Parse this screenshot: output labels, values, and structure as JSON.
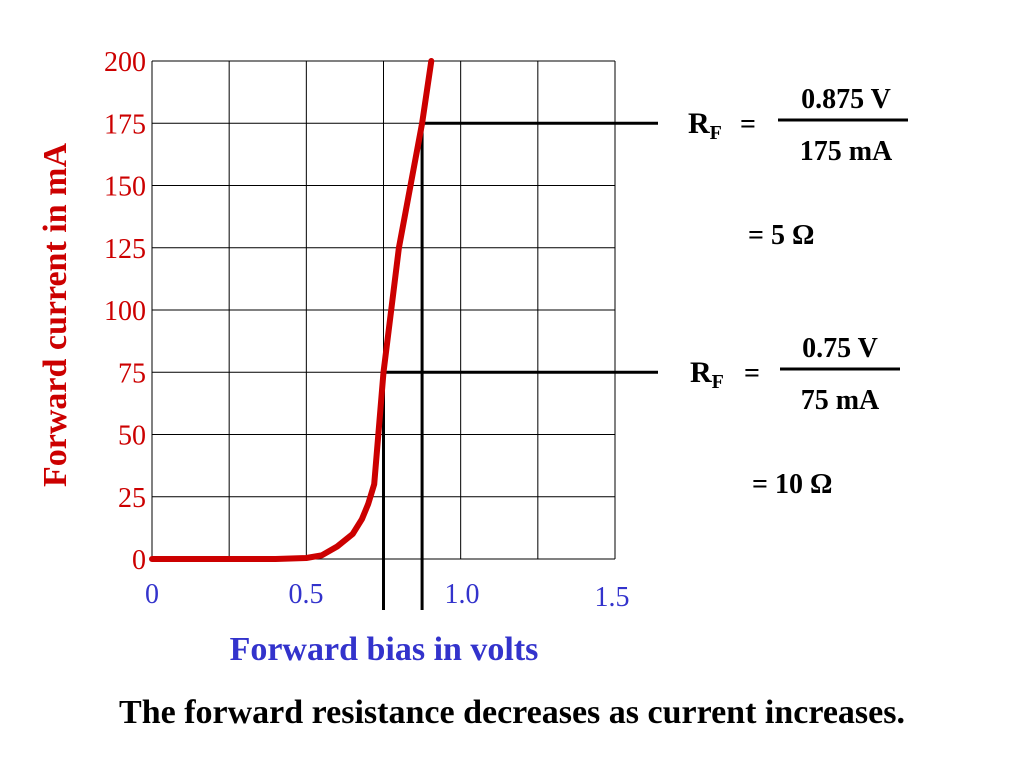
{
  "chart_data": {
    "type": "line",
    "xlabel": "Forward bias in volts",
    "ylabel": "Forward current in mA",
    "xlim": [
      0,
      1.5
    ],
    "ylim": [
      0,
      200
    ],
    "x_ticks": [
      0,
      0.5,
      1.0,
      1.5
    ],
    "x_tick_labels": [
      "0",
      "0.5",
      "1.0",
      "1.5"
    ],
    "y_ticks": [
      0,
      25,
      50,
      75,
      100,
      125,
      150,
      175,
      200
    ],
    "y_tick_labels": [
      "0",
      "25",
      "50",
      "75",
      "100",
      "125",
      "150",
      "175",
      "200"
    ],
    "grid": true,
    "series": [
      {
        "x": [
          0,
          0.1,
          0.2,
          0.3,
          0.4,
          0.5,
          0.55,
          0.6,
          0.65,
          0.68,
          0.7,
          0.72,
          0.75,
          0.8,
          0.875,
          0.905
        ],
        "y": [
          0,
          0,
          0,
          0,
          0,
          0.4,
          1.5,
          5,
          10,
          16,
          22,
          30,
          75,
          125,
          175,
          200
        ],
        "color": "#cc0000"
      }
    ],
    "reference_lines": [
      {
        "x": 0.75,
        "y": 75
      },
      {
        "x": 0.875,
        "y": 175
      }
    ],
    "colors": {
      "curve": "#cc0000",
      "ylabel": "#cc0000",
      "ytick": "#cc0000",
      "xtick": "#3333cc",
      "xlabel": "#3333cc"
    }
  },
  "annotations": {
    "top": {
      "r_main": "R",
      "r_sub": "F",
      "equals": "=",
      "numerator": "0.875 V",
      "denominator": "175 mA",
      "result": "=  5 Ω"
    },
    "bottom": {
      "r_main": "R",
      "r_sub": "F",
      "equals": "=",
      "numerator": "0.75 V",
      "denominator": "75 mA",
      "result": "=  10 Ω"
    }
  },
  "caption": "The forward resistance decreases as current increases."
}
